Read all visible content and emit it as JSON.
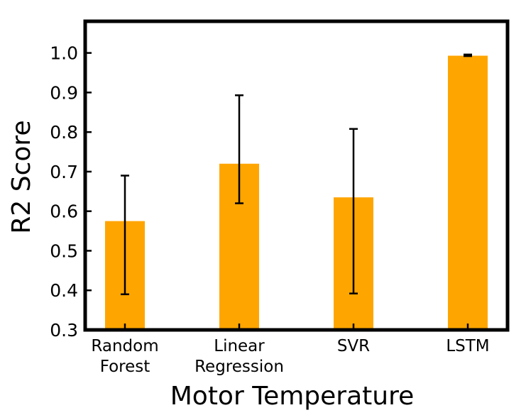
{
  "chart_data": {
    "type": "bar",
    "categories": [
      [
        "Random",
        "Forest"
      ],
      [
        "Linear",
        "Regression"
      ],
      [
        "SVR"
      ],
      [
        "LSTM"
      ]
    ],
    "values": [
      0.575,
      0.72,
      0.635,
      0.993
    ],
    "error_low": [
      0.39,
      0.62,
      0.392,
      0.992
    ],
    "error_high": [
      0.69,
      0.893,
      0.808,
      0.996
    ],
    "xlabel": "Motor Temperature",
    "ylabel": "R2 Score",
    "ylim": [
      0.3,
      1.08
    ],
    "yticks": [
      "0.3",
      "0.4",
      "0.5",
      "0.6",
      "0.7",
      "0.8",
      "0.9",
      "1.0"
    ],
    "bar_color": "#FFA500",
    "error_color": "#000000",
    "grid": false,
    "legend": "none"
  }
}
